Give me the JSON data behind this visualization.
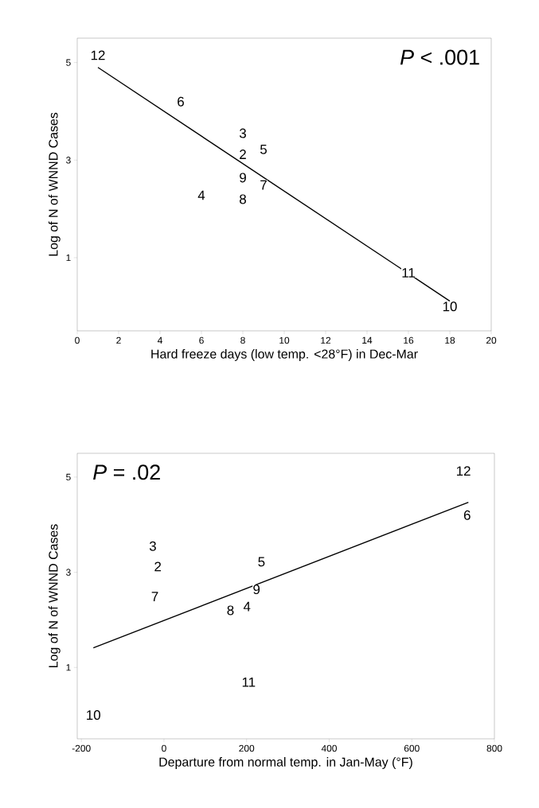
{
  "chart_data": [
    {
      "type": "scatter",
      "xlabel": "Hard freeze days (low temp. <28°F) in Dec-Mar",
      "ylabel": "Log of N of WNND Cases",
      "annotations": [
        "*P* < .001",
        {
          "text": "2",
          "x": 8,
          "y": 3.12
        },
        {
          "text": "3",
          "x": 8,
          "y": 3.55
        },
        {
          "text": "4",
          "x": 6,
          "y": 2.28
        },
        {
          "text": "5",
          "x": 9,
          "y": 3.22
        },
        {
          "text": "6",
          "x": 5,
          "y": 4.2
        },
        {
          "text": "7",
          "x": 9,
          "y": 2.49
        },
        {
          "text": "8",
          "x": 8,
          "y": 2.2
        },
        {
          "text": "9",
          "x": 8,
          "y": 2.64
        },
        {
          "text": "10",
          "x": 18,
          "y": 0.0
        },
        {
          "text": "11",
          "x": 16,
          "y": 0.69
        },
        {
          "text": "12",
          "x": 1,
          "y": 5.15
        }
      ],
      "xlim": [
        0,
        20
      ],
      "ylim": [
        -0.5,
        5.5
      ],
      "xticks": [
        0,
        2,
        4,
        6,
        8,
        10,
        12,
        14,
        16,
        18,
        20
      ],
      "yticks": [
        1,
        3,
        5
      ],
      "series": [
        {
          "type": "line",
          "color": "#000000",
          "x": [
            1,
            18
          ],
          "values": [
            4.9,
            0.11
          ]
        }
      ]
    },
    {
      "type": "scatter",
      "xlabel": "Departure from normal temp. in Jan-May (°F)",
      "ylabel": "Log of N of WNND Cases",
      "annotations": [
        "*P* = .02",
        {
          "text": "2",
          "x": -15,
          "y": 3.12
        },
        {
          "text": "3",
          "x": -27,
          "y": 3.55
        },
        {
          "text": "4",
          "x": 201,
          "y": 2.28
        },
        {
          "text": "5",
          "x": 236,
          "y": 3.22
        },
        {
          "text": "6",
          "x": 734,
          "y": 4.2
        },
        {
          "text": "7",
          "x": -22,
          "y": 2.49
        },
        {
          "text": "8",
          "x": 161,
          "y": 2.2
        },
        {
          "text": "9",
          "x": 224,
          "y": 2.64
        },
        {
          "text": "10",
          "x": -171,
          "y": 0.0
        },
        {
          "text": "11",
          "x": 205,
          "y": 0.69
        },
        {
          "text": "12",
          "x": 725,
          "y": 5.13
        }
      ],
      "xlim": [
        -210,
        800
      ],
      "ylim": [
        -0.5,
        5.5
      ],
      "xticks": [
        -200,
        0,
        200,
        400,
        600,
        800
      ],
      "yticks": [
        1,
        3,
        5
      ],
      "series": [
        {
          "type": "line",
          "color": "#000000",
          "x": [
            -171,
            737
          ],
          "values": [
            1.41,
            4.47
          ]
        }
      ]
    }
  ]
}
